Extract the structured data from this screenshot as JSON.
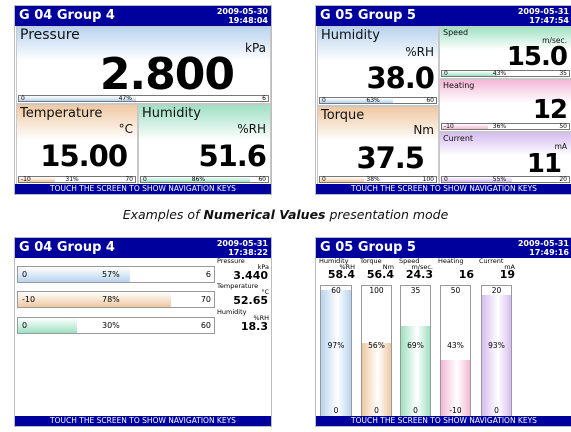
{
  "screens": {
    "s1": {
      "title": "G 04   Group 4",
      "date": "2009-05-30",
      "time": "19:48:04",
      "footer": "TOUCH THE SCREEN TO SHOW NAVIGATION KEYS",
      "tiles": [
        {
          "name": "Pressure",
          "unit": "kPa",
          "value": "2.800",
          "min": "0",
          "max": "6",
          "pct": "47%",
          "fill": 0.47,
          "color": "#b9d3ef"
        },
        {
          "name": "Temperature",
          "unit": "°C",
          "value": "15.00",
          "min": "-10",
          "max": "70",
          "pct": "31%",
          "fill": 0.31,
          "color": "#efc8a2"
        },
        {
          "name": "Humidity",
          "unit": "%RH",
          "value": "51.6",
          "min": "0",
          "max": "60",
          "pct": "86%",
          "fill": 0.86,
          "color": "#9fe0c3"
        }
      ]
    },
    "s2": {
      "title": "G 05   Group 5",
      "date": "2009-05-31",
      "time": "17:47:54",
      "footer": "TOUCH THE SCREEN TO SHOW NAVIGATION KEYS",
      "tiles": [
        {
          "name": "Humidity",
          "unit": "%RH",
          "value": "38.0",
          "min": "0",
          "max": "60",
          "pct": "63%",
          "fill": 0.63,
          "color": "#b9d3ef"
        },
        {
          "name": "Speed",
          "unit": "m/sec.",
          "value": "15.0",
          "min": "0",
          "max": "35",
          "pct": "43%",
          "fill": 0.43,
          "color": "#9fe0c3"
        },
        {
          "name": "Heating",
          "unit": "",
          "value": "12",
          "min": "-10",
          "max": "50",
          "pct": "36%",
          "fill": 0.36,
          "color": "#f3b8d6"
        },
        {
          "name": "Torque",
          "unit": "Nm",
          "value": "37.5",
          "min": "0",
          "max": "100",
          "pct": "38%",
          "fill": 0.38,
          "color": "#efc8a2"
        },
        {
          "name": "Current",
          "unit": "mA",
          "value": "11",
          "min": "0",
          "max": "20",
          "pct": "55%",
          "fill": 0.55,
          "color": "#d7bdf0"
        }
      ]
    },
    "s3": {
      "title": "G 04   Group 4",
      "date": "2009-05-31",
      "time": "17:38:22",
      "footer": "TOUCH THE SCREEN TO SHOW NAVIGATION KEYS",
      "channels": [
        {
          "name": "Pressure",
          "unit": "kPa",
          "value": "3.440",
          "min": "0",
          "max": "6",
          "pct": "57%",
          "fill": 0.57,
          "color": "#b9d3ef"
        },
        {
          "name": "Temperature",
          "unit": "°C",
          "value": "52.65",
          "min": "-10",
          "max": "70",
          "pct": "78%",
          "fill": 0.78,
          "color": "#efc8a2"
        },
        {
          "name": "Humidity",
          "unit": "%RH",
          "value": "18.3",
          "min": "0",
          "max": "60",
          "pct": "30%",
          "fill": 0.3,
          "color": "#9fe0c3"
        }
      ]
    },
    "s4": {
      "title": "G 05   Group 5",
      "date": "2009-05-31",
      "time": "17:49:16",
      "footer": "TOUCH THE SCREEN TO SHOW NAVIGATION KEYS",
      "channels": [
        {
          "name": "Humidity",
          "unit": "%RH",
          "value": "58.4",
          "max": "60",
          "min": "0",
          "pct": "97%",
          "fill": 0.97,
          "color": "#b9d3ef"
        },
        {
          "name": "Torque",
          "unit": "Nm",
          "value": "56.4",
          "max": "100",
          "min": "0",
          "pct": "56%",
          "fill": 0.56,
          "color": "#efc8a2"
        },
        {
          "name": "Speed",
          "unit": "m/sec.",
          "value": "24.3",
          "max": "35",
          "min": "0",
          "pct": "69%",
          "fill": 0.69,
          "color": "#9fe0c3"
        },
        {
          "name": "Heating",
          "unit": "",
          "value": "16",
          "max": "50",
          "min": "-10",
          "pct": "43%",
          "fill": 0.43,
          "color": "#f3b8d6"
        },
        {
          "name": "Current",
          "unit": "mA",
          "value": "19",
          "max": "20",
          "min": "0",
          "pct": "93%",
          "fill": 0.93,
          "color": "#d7bdf0"
        }
      ]
    }
  },
  "caption": {
    "prefix": "Examples of ",
    "bold": "Numerical Values",
    "suffix": " presentation mode"
  }
}
